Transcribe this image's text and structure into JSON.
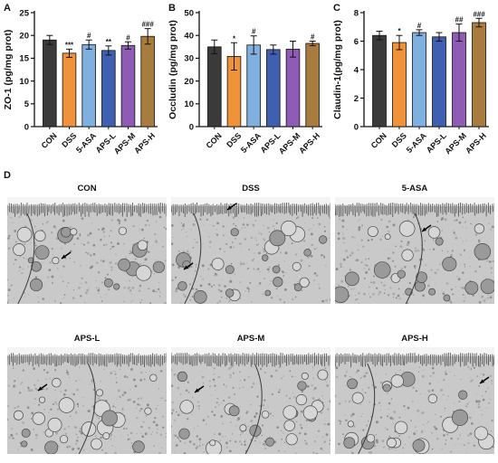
{
  "panel_letters": {
    "a": "A",
    "b": "B",
    "c": "C",
    "d": "D"
  },
  "colors": {
    "CON": "#3a3a3a",
    "DSS": "#f0923a",
    "5-ASA": "#7fb0e0",
    "APS-L": "#3f60b0",
    "APS-M": "#8e5bb5",
    "APS-H": "#a87c3f"
  },
  "chart_data": [
    {
      "type": "bar",
      "panel": "A",
      "ylabel": "ZO-1 (pg/mg prot)",
      "categories": [
        "CON",
        "DSS",
        "5-ASA",
        "APS-L",
        "APS-M",
        "APS-H"
      ],
      "values": [
        19.0,
        16.1,
        18.0,
        16.7,
        17.8,
        19.8
      ],
      "errors": [
        1.0,
        0.9,
        1.0,
        1.0,
        0.8,
        1.7
      ],
      "significance": [
        "",
        "***",
        "#",
        "**",
        "#",
        "###"
      ],
      "ylim": [
        0,
        25
      ],
      "yticks": [
        0,
        5,
        10,
        15,
        20,
        25
      ]
    },
    {
      "type": "bar",
      "panel": "B",
      "ylabel": "Occludin (pg/mg prot)",
      "categories": [
        "CON",
        "DSS",
        "5-ASA",
        "APS-L",
        "APS-M",
        "APS-H"
      ],
      "values": [
        35.0,
        30.8,
        35.8,
        33.8,
        34.0,
        36.5
      ],
      "errors": [
        3.0,
        6.0,
        4.0,
        2.0,
        3.5,
        1.0
      ],
      "significance": [
        "",
        "*",
        "#",
        "",
        "",
        "#"
      ],
      "ylim": [
        0,
        50
      ],
      "yticks": [
        0,
        10,
        20,
        30,
        40,
        50
      ]
    },
    {
      "type": "bar",
      "panel": "C",
      "ylabel": "Claudin-1(pg/mg prot)",
      "categories": [
        "CON",
        "DSS",
        "5-ASA",
        "APS-L",
        "APS-M",
        "APS-H"
      ],
      "values": [
        6.4,
        5.9,
        6.6,
        6.3,
        6.6,
        7.3
      ],
      "errors": [
        0.3,
        0.5,
        0.2,
        0.3,
        0.6,
        0.3
      ],
      "significance": [
        "",
        "*",
        "#",
        "",
        "##",
        "###"
      ],
      "ylim": [
        0,
        8
      ],
      "yticks": [
        0,
        2,
        4,
        6,
        8
      ]
    }
  ],
  "em_panels": [
    {
      "label": "CON"
    },
    {
      "label": "DSS"
    },
    {
      "label": "5-ASA"
    },
    {
      "label": "APS-L"
    },
    {
      "label": "APS-M"
    },
    {
      "label": "APS-H"
    }
  ]
}
